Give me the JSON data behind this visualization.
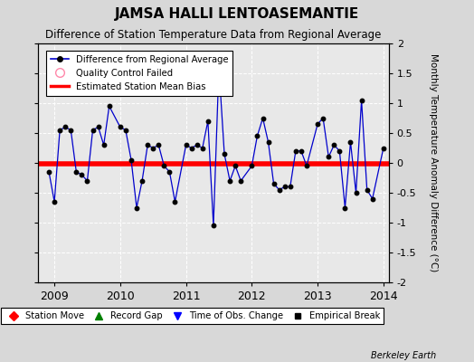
{
  "title": "JAMSA HALLI LENTOASEMANTIE",
  "subtitle": "Difference of Station Temperature Data from Regional Average",
  "ylabel": "Monthly Temperature Anomaly Difference (°C)",
  "xlim": [
    2008.75,
    2014.08
  ],
  "ylim": [
    -2,
    2
  ],
  "yticks": [
    -2,
    -1.5,
    -1,
    -0.5,
    0,
    0.5,
    1,
    1.5,
    2
  ],
  "xticks": [
    2009,
    2010,
    2011,
    2012,
    2013,
    2014
  ],
  "bias_line_y": -0.02,
  "background_color": "#d8d8d8",
  "plot_bg_color": "#e8e8e8",
  "line_color": "#0000cc",
  "bias_color": "#ff0000",
  "marker_color": "#000000",
  "footer": "Berkeley Earth",
  "data_x": [
    2008.917,
    2009.0,
    2009.083,
    2009.167,
    2009.25,
    2009.333,
    2009.417,
    2009.5,
    2009.583,
    2009.667,
    2009.75,
    2009.833,
    2010.0,
    2010.083,
    2010.167,
    2010.25,
    2010.333,
    2010.417,
    2010.5,
    2010.583,
    2010.667,
    2010.75,
    2010.833,
    2011.0,
    2011.083,
    2011.167,
    2011.25,
    2011.333,
    2011.417,
    2011.5,
    2011.583,
    2011.667,
    2011.75,
    2011.833,
    2012.0,
    2012.083,
    2012.167,
    2012.25,
    2012.333,
    2012.417,
    2012.5,
    2012.583,
    2012.667,
    2012.75,
    2012.833,
    2013.0,
    2013.083,
    2013.167,
    2013.25,
    2013.333,
    2013.417,
    2013.5,
    2013.583,
    2013.667,
    2013.75,
    2013.833,
    2014.0
  ],
  "data_y": [
    -0.15,
    -0.65,
    0.55,
    0.6,
    0.55,
    -0.15,
    -0.2,
    -0.3,
    0.55,
    0.6,
    0.3,
    0.95,
    0.6,
    0.55,
    0.05,
    -0.75,
    -0.3,
    0.3,
    0.25,
    0.3,
    -0.05,
    -0.15,
    -0.65,
    0.3,
    0.25,
    0.3,
    0.25,
    0.7,
    -1.05,
    1.6,
    0.15,
    -0.3,
    -0.05,
    -0.3,
    -0.05,
    0.45,
    0.75,
    0.35,
    -0.35,
    -0.45,
    -0.4,
    -0.4,
    0.2,
    0.2,
    -0.05,
    0.65,
    0.75,
    0.1,
    0.3,
    0.2,
    -0.75,
    0.35,
    -0.5,
    1.05,
    -0.45,
    -0.6,
    0.25
  ]
}
